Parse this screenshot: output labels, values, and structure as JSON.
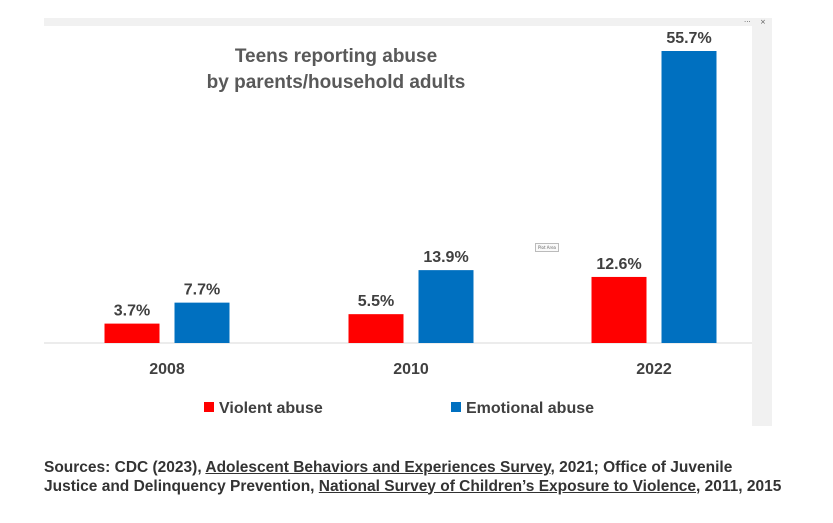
{
  "window": {
    "more_label": "···",
    "close_label": "×"
  },
  "plot_area_tag": "Plot Area",
  "chart_data": {
    "type": "bar",
    "title_lines": [
      "Teens reporting abuse",
      "by parents/household adults"
    ],
    "categories": [
      "2008",
      "2010",
      "2022"
    ],
    "series": [
      {
        "name": "Violent abuse",
        "color": "#ff0000",
        "values": [
          3.7,
          5.5,
          12.6
        ],
        "labels": [
          "3.7%",
          "5.5%",
          "12.6%"
        ]
      },
      {
        "name": "Emotional abuse",
        "color": "#0070c0",
        "values": [
          7.7,
          13.9,
          55.7
        ],
        "labels": [
          "7.7%",
          "13.9%",
          "55.7%"
        ]
      }
    ],
    "xlabel": "",
    "ylabel": "",
    "ylim": [
      0,
      55.7
    ],
    "grid": false,
    "legend_position": "bottom"
  },
  "source": {
    "prefix": "Sources: CDC (2023), ",
    "link1": "Adolescent Behaviors and Experiences Survey",
    "middle": ", 2021; Office of Juvenile Justice and Delinquency Prevention, ",
    "link2": "National Survey of Children’s Exposure to Violence",
    "suffix": ", 2011, 2015"
  }
}
